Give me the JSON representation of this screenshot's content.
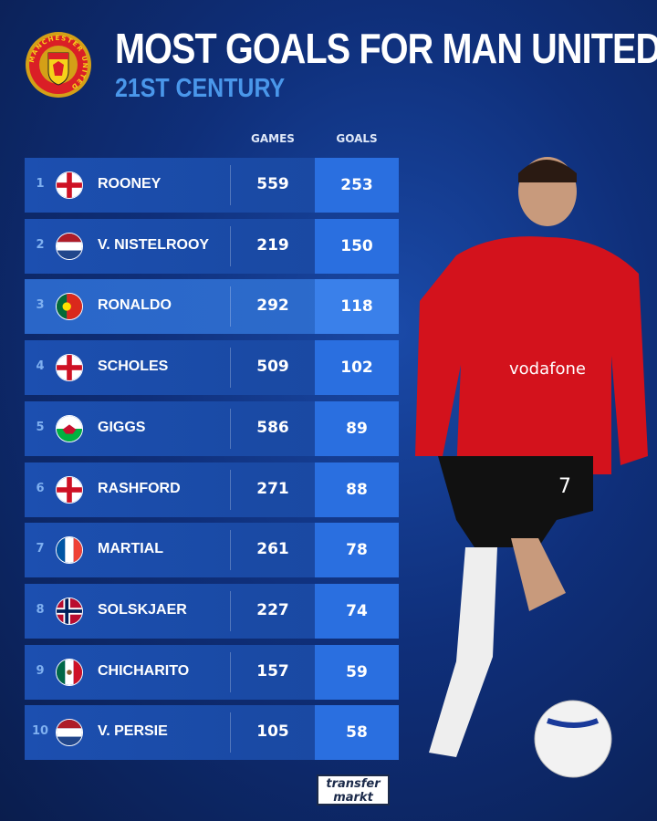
{
  "header": {
    "title": "MOST GOALS FOR MAN UNITED",
    "subtitle": "21ST CENTURY",
    "crest_text": "MANCHESTER UNITED"
  },
  "colors": {
    "accent": "#4a97ea",
    "goals_cell": "#2a6fe0",
    "background": "#0f2f7a"
  },
  "chart_data": {
    "type": "table",
    "columns": [
      "GAMES",
      "GOALS"
    ],
    "rows": [
      {
        "rank": "1",
        "flag": "england",
        "name": "ROONEY",
        "games": "559",
        "goals": "253"
      },
      {
        "rank": "2",
        "flag": "netherlands",
        "name": "V. NISTELROOY",
        "games": "219",
        "goals": "150"
      },
      {
        "rank": "3",
        "flag": "portugal",
        "name": "RONALDO",
        "games": "292",
        "goals": "118",
        "highlighted": true
      },
      {
        "rank": "4",
        "flag": "england",
        "name": "SCHOLES",
        "games": "509",
        "goals": "102"
      },
      {
        "rank": "5",
        "flag": "wales",
        "name": "GIGGS",
        "games": "586",
        "goals": "89"
      },
      {
        "rank": "6",
        "flag": "england",
        "name": "RASHFORD",
        "games": "271",
        "goals": "88"
      },
      {
        "rank": "7",
        "flag": "france",
        "name": "MARTIAL",
        "games": "261",
        "goals": "78"
      },
      {
        "rank": "8",
        "flag": "norway",
        "name": "SOLSKJAER",
        "games": "227",
        "goals": "74"
      },
      {
        "rank": "9",
        "flag": "mexico",
        "name": "CHICHARITO",
        "games": "157",
        "goals": "59"
      },
      {
        "rank": "10",
        "flag": "netherlands",
        "name": "V. PERSIE",
        "games": "105",
        "goals": "58"
      }
    ]
  },
  "footer": {
    "logo_line1": "transfer",
    "logo_line2": "markt"
  },
  "player": {
    "shirt_sponsor": "vodafone",
    "shirt_number": "7"
  }
}
